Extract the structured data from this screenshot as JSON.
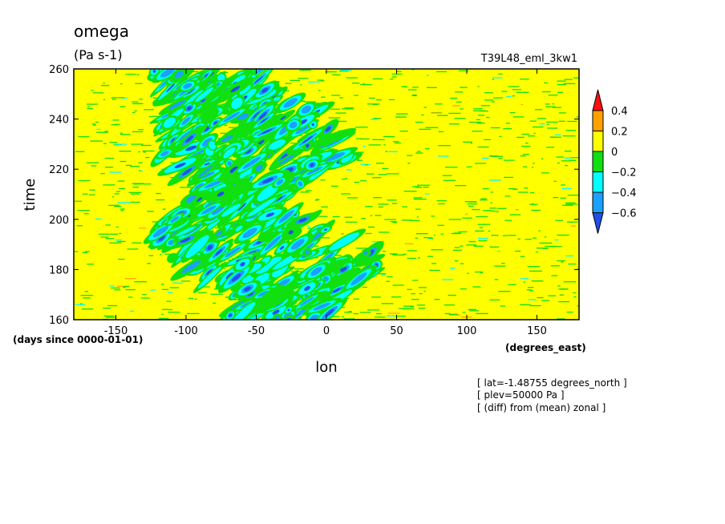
{
  "chart_data": {
    "type": "heatmap",
    "variable": "omega",
    "units": "(Pa s-1)",
    "experiment": "T39L48_eml_3kw1",
    "xlabel": "lon",
    "x_units": "(degrees_east)",
    "ylabel": "time",
    "y_units": "(days since 0000-01-01)",
    "xlim": [
      -180,
      180
    ],
    "ylim": [
      160,
      260
    ],
    "x_ticks": [
      "-150",
      "-100",
      "-50",
      "0",
      "50",
      "100",
      "150"
    ],
    "x_tick_values": [
      -150,
      -100,
      -50,
      0,
      50,
      100,
      150
    ],
    "y_ticks": [
      "160",
      "180",
      "200",
      "220",
      "240",
      "260"
    ],
    "y_tick_values": [
      160,
      180,
      200,
      220,
      240,
      260
    ],
    "colorbar": {
      "levels": [
        -0.6,
        -0.4,
        -0.2,
        0,
        0.2,
        0.4
      ],
      "labels": [
        "0.4",
        "0.2",
        "0",
        "−0.2",
        "−0.4",
        "−0.6"
      ],
      "colors": [
        "#2050e8",
        "#1aa0ff",
        "#00ffff",
        "#10e010",
        "#ffff00",
        "#ffa000",
        "#ff1010"
      ]
    },
    "background_value_range": [
      0,
      0.2
    ],
    "active_band_lon": [
      -120,
      50
    ],
    "min_contour": -0.6,
    "notes": [
      "[ lat=-1.48755 degrees_north ]",
      "[ plev=50000 Pa ]",
      "[ (diff) from (mean) zonal ]"
    ]
  }
}
